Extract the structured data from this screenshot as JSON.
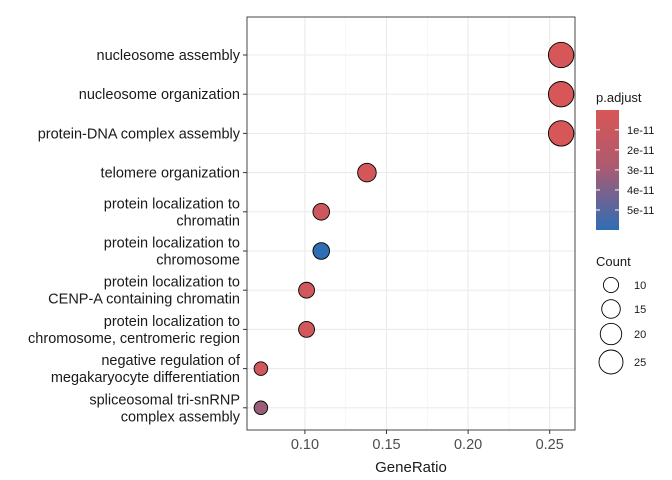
{
  "chart_data": {
    "type": "scatter",
    "xlabel": "GeneRatio",
    "ylabel": "",
    "xlim": [
      0.0645,
      0.2655
    ],
    "xticks": [
      0.1,
      0.15,
      0.2,
      0.25
    ],
    "xtick_labels": [
      "0.10",
      "0.15",
      "0.20",
      "0.25"
    ],
    "grid": true,
    "legend_position": "right",
    "categories": [
      {
        "lines": [
          "nucleosome assembly"
        ],
        "x": 0.257,
        "count": 28,
        "p_adjust": 5e-13
      },
      {
        "lines": [
          "nucleosome organization"
        ],
        "x": 0.257,
        "count": 28,
        "p_adjust": 5e-13
      },
      {
        "lines": [
          "protein-DNA complex assembly"
        ],
        "x": 0.257,
        "count": 28,
        "p_adjust": 5e-13
      },
      {
        "lines": [
          "telomere organization"
        ],
        "x": 0.138,
        "count": 15,
        "p_adjust": 2e-12
      },
      {
        "lines": [
          "protein localization to",
          "chromatin"
        ],
        "x": 0.11,
        "count": 12,
        "p_adjust": 4e-12
      },
      {
        "lines": [
          "protein localization to",
          "chromosome"
        ],
        "x": 0.11,
        "count": 12,
        "p_adjust": 6e-11
      },
      {
        "lines": [
          "protein localization to",
          "CENP-A containing chromatin"
        ],
        "x": 0.101,
        "count": 11,
        "p_adjust": 3e-12
      },
      {
        "lines": [
          "protein localization to",
          "chromosome, centromeric region"
        ],
        "x": 0.101,
        "count": 11,
        "p_adjust": 3e-12
      },
      {
        "lines": [
          "negative regulation of",
          "megakaryocyte differentiation"
        ],
        "x": 0.073,
        "count": 8,
        "p_adjust": 3e-12
      },
      {
        "lines": [
          "spliceosomal tri-snRNP",
          "complex assembly"
        ],
        "x": 0.073,
        "count": 8,
        "p_adjust": 2.2e-11
      }
    ],
    "color_legend": {
      "title": "p.adjust",
      "labels": [
        "1e-11",
        "2e-11",
        "3e-11",
        "4e-11",
        "5e-11"
      ],
      "values": [
        1e-11,
        2e-11,
        3e-11,
        4e-11,
        5e-11
      ],
      "range": [
        1e-13,
        6e-11
      ],
      "low_color": "#d85656",
      "high_color": "#2f6db5"
    },
    "size_legend": {
      "title": "Count",
      "labels": [
        "10",
        "15",
        "20",
        "25"
      ],
      "values": [
        10,
        15,
        20,
        25
      ]
    }
  }
}
